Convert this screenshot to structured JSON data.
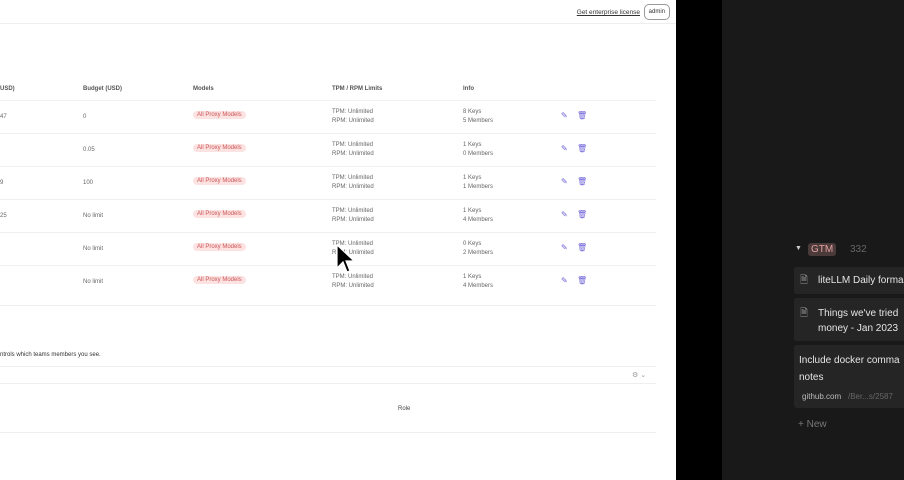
{
  "header": {
    "enterprise_link": "Get enterprise license",
    "user": "admin"
  },
  "table": {
    "columns": [
      "USD)",
      "Budget (USD)",
      "Models",
      "TPM / RPM Limits",
      "Info"
    ],
    "rows": [
      {
        "spend": "47",
        "budget": "0",
        "model": "All Proxy Models",
        "tpm": "TPM: Unlimited",
        "rpm": "RPM: Unlimited",
        "keys": "8 Keys",
        "members": "5 Members"
      },
      {
        "spend": "",
        "budget": "0.05",
        "model": "All Proxy Models",
        "tpm": "TPM: Unlimited",
        "rpm": "RPM: Unlimited",
        "keys": "1 Keys",
        "members": "0 Members"
      },
      {
        "spend": "9",
        "budget": "100",
        "model": "All Proxy Models",
        "tpm": "TPM: Unlimited",
        "rpm": "RPM: Unlimited",
        "keys": "1 Keys",
        "members": "1 Members"
      },
      {
        "spend": "25",
        "budget": "No limit",
        "model": "All Proxy Models",
        "tpm": "TPM: Unlimited",
        "rpm": "RPM: Unlimited",
        "keys": "1 Keys",
        "members": "4 Members"
      },
      {
        "spend": "",
        "budget": "No limit",
        "model": "All Proxy Models",
        "tpm": "TPM: Unlimited",
        "rpm": "RPM: Unlimited",
        "keys": "0 Keys",
        "members": "2 Members"
      },
      {
        "spend": "",
        "budget": "No limit",
        "model": "All Proxy Models",
        "tpm": "TPM: Unlimited",
        "rpm": "RPM: Unlimited",
        "keys": "1 Keys",
        "members": "4 Members"
      }
    ]
  },
  "note": "ntrols which teams members you see.",
  "members_table": {
    "role_header": "Role"
  },
  "notion": {
    "group": "GTM",
    "count": "332",
    "items": [
      "liteLLM Daily forma",
      "Things we've tried money - Jan 2023",
      "Include docker comma notes"
    ],
    "link_domain": "github.com",
    "link_path": "/Ber...s/2587",
    "new_label": "New"
  },
  "colors": {
    "accent": "#6b5fd6",
    "badge_bg": "#fde2e2"
  }
}
